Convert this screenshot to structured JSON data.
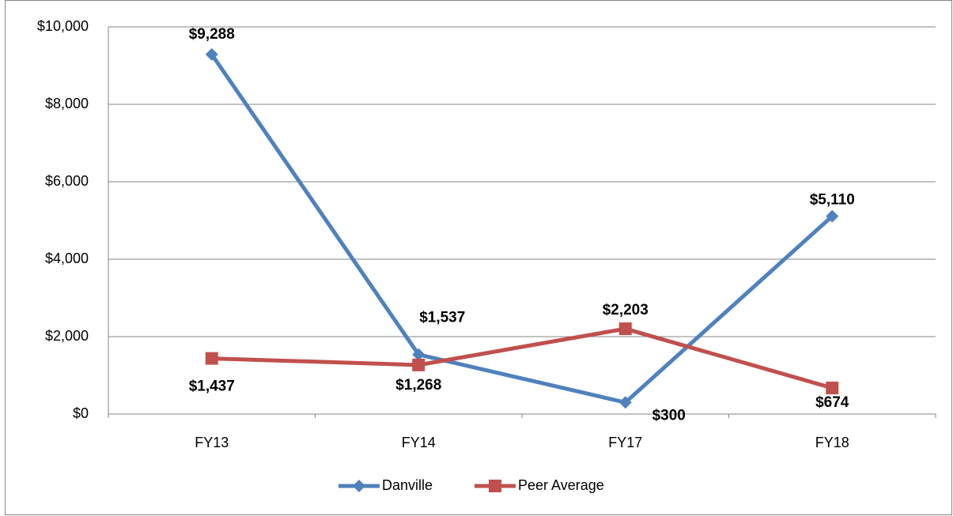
{
  "chart_data": {
    "type": "line",
    "categories": [
      "FY13",
      "FY14",
      "FY17",
      "FY18"
    ],
    "series": [
      {
        "name": "Danville",
        "color": "#4f81bd",
        "marker": "diamond",
        "values": [
          9288,
          1537,
          300,
          5110
        ],
        "value_labels": [
          "$9,288",
          "$1,537",
          "$300",
          "$5,110"
        ]
      },
      {
        "name": "Peer Average",
        "color": "#c0504d",
        "marker": "square",
        "values": [
          1437,
          1268,
          2203,
          674
        ],
        "value_labels": [
          "$1,437",
          "$1,268",
          "$2,203",
          "$674"
        ]
      }
    ],
    "ylim": [
      0,
      10000
    ],
    "yticks": [
      {
        "value": 0,
        "label": "$0"
      },
      {
        "value": 2000,
        "label": "$2,000"
      },
      {
        "value": 4000,
        "label": "$4,000"
      },
      {
        "value": 6000,
        "label": "$6,000"
      },
      {
        "value": 8000,
        "label": "$8,000"
      },
      {
        "value": 10000,
        "label": "$10,000"
      }
    ],
    "grid": true,
    "legend": "bottom"
  }
}
